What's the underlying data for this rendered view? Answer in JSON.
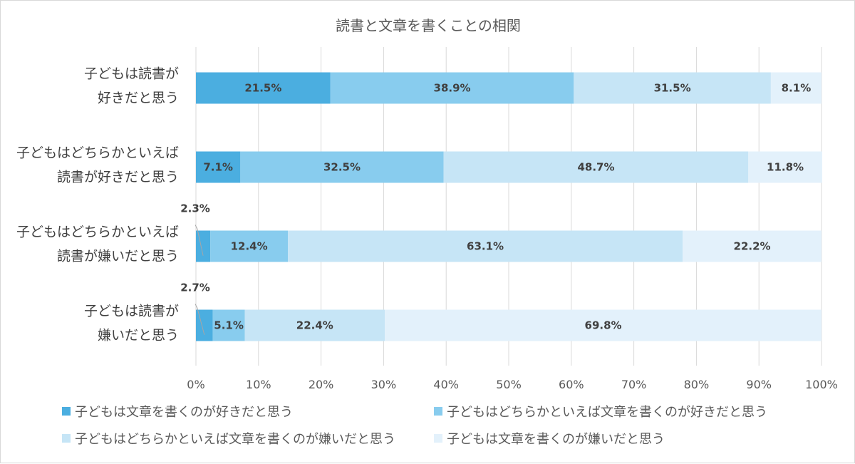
{
  "chart_data": {
    "type": "bar",
    "orientation": "horizontal",
    "stacked": "percent",
    "title": "読書と文章を書くことの相関",
    "categories": [
      [
        "子どもは読書が",
        "好きだと思う"
      ],
      [
        "子どもはどちらかといえば",
        "読書が好きだと思う"
      ],
      [
        "子どもはどちらかといえば",
        "読書が嫌いだと思う"
      ],
      [
        "子どもは読書が",
        "嫌いだと思う"
      ]
    ],
    "series": [
      {
        "name": "子どもは文章を書くのが好きだと思う",
        "color": "#4baee0",
        "values": [
          21.5,
          7.1,
          2.3,
          2.7
        ]
      },
      {
        "name": "子どもはどちらかといえば文章を書くのが好きだと思う",
        "color": "#88ccee",
        "values": [
          38.9,
          32.5,
          12.4,
          5.1
        ]
      },
      {
        "name": "子どもはどちらかといえば文章を書くのが嫌いだと思う",
        "color": "#c6e5f6",
        "values": [
          31.5,
          48.7,
          63.1,
          22.4
        ]
      },
      {
        "name": "子どもは文章を書くのが嫌いだと思う",
        "color": "#e3f1fb",
        "values": [
          8.1,
          11.8,
          22.2,
          69.8
        ]
      }
    ],
    "data_labels": [
      [
        "21.5%",
        "38.9%",
        "31.5%",
        "8.1%"
      ],
      [
        "7.1%",
        "32.5%",
        "48.7%",
        "11.8%"
      ],
      [
        "2.3%",
        "12.4%",
        "63.1%",
        "22.2%"
      ],
      [
        "2.7%",
        "5.1%",
        "22.4%",
        "69.8%"
      ]
    ],
    "xlim": [
      0,
      100
    ],
    "xticks": [
      "0%",
      "10%",
      "20%",
      "30%",
      "40%",
      "50%",
      "60%",
      "70%",
      "80%",
      "90%",
      "100%"
    ],
    "grid": true,
    "legend_position": "bottom"
  }
}
